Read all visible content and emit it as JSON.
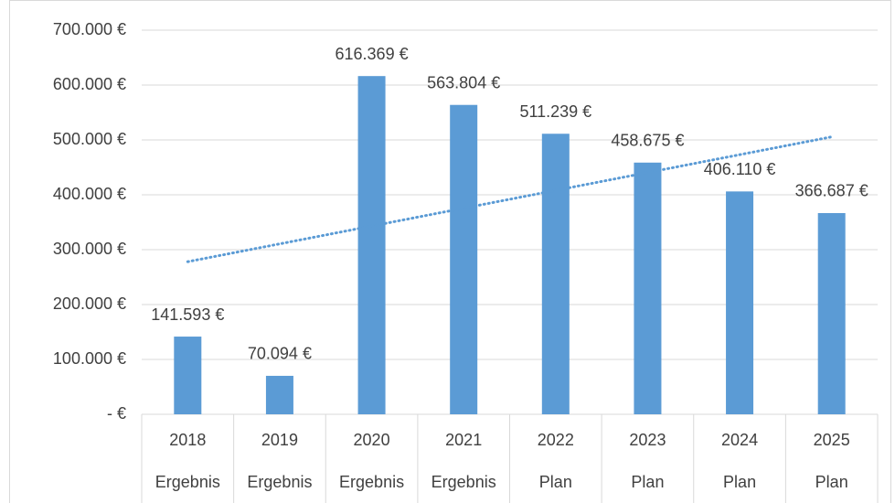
{
  "chart_data": {
    "type": "bar",
    "categories": [
      "2018",
      "2019",
      "2020",
      "2021",
      "2022",
      "2023",
      "2024",
      "2025"
    ],
    "groups": [
      "Ergebnis",
      "Ergebnis",
      "Ergebnis",
      "Ergebnis",
      "Plan",
      "Plan",
      "Plan",
      "Plan"
    ],
    "values": [
      141593,
      70094,
      616369,
      563804,
      511239,
      458675,
      406110,
      366687
    ],
    "value_labels": [
      "141.593 €",
      "70.094 €",
      "616.369 €",
      "563.804 €",
      "511.239 €",
      "458.675 €",
      "406.110 €",
      "366.687 €"
    ],
    "color": "#5b9bd5",
    "trendline": "linear",
    "ylim": [
      0,
      700000
    ],
    "yticks": [
      {
        "value": 0,
        "label": "-   €"
      },
      {
        "value": 100000,
        "label": "100.000 €"
      },
      {
        "value": 200000,
        "label": "200.000 €"
      },
      {
        "value": 300000,
        "label": "300.000 €"
      },
      {
        "value": 400000,
        "label": "400.000 €"
      },
      {
        "value": 500000,
        "label": "500.000 €"
      },
      {
        "value": 600000,
        "label": "600.000 €"
      },
      {
        "value": 700000,
        "label": "700.000 €"
      }
    ],
    "grid": true
  }
}
